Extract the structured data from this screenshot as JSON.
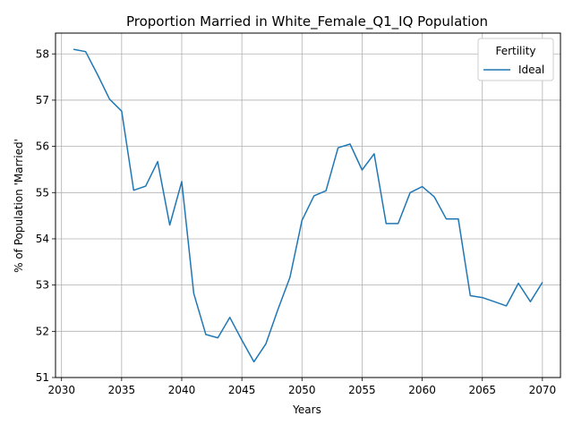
{
  "chart_data": {
    "type": "line",
    "title": "Proportion Married in White_Female_Q1_IQ Population",
    "xlabel": "Years",
    "ylabel": "% of Population 'Married'",
    "xlim": [
      2029.5,
      2071.5
    ],
    "ylim": [
      51,
      58.45
    ],
    "x_ticks": [
      2030,
      2035,
      2040,
      2045,
      2050,
      2055,
      2060,
      2065,
      2070
    ],
    "y_ticks": [
      51,
      52,
      53,
      54,
      55,
      56,
      57,
      58
    ],
    "grid": true,
    "legend": {
      "title": "Fertility",
      "position": "top-right"
    },
    "series": [
      {
        "name": "Ideal",
        "color": "#1f77b4",
        "x": [
          2031,
          2032,
          2033,
          2034,
          2035,
          2036,
          2037,
          2038,
          2039,
          2040,
          2041,
          2042,
          2043,
          2044,
          2045,
          2046,
          2047,
          2048,
          2049,
          2050,
          2051,
          2052,
          2053,
          2054,
          2055,
          2056,
          2057,
          2058,
          2059,
          2060,
          2061,
          2062,
          2063,
          2064,
          2065,
          2066,
          2067,
          2068,
          2069,
          2070
        ],
        "values": [
          58.1,
          58.05,
          57.55,
          57.02,
          56.76,
          55.05,
          55.14,
          55.67,
          54.3,
          55.24,
          52.82,
          51.93,
          51.86,
          52.3,
          51.81,
          51.34,
          51.73,
          52.47,
          53.17,
          54.4,
          54.93,
          55.04,
          55.97,
          56.05,
          55.49,
          55.84,
          54.33,
          54.33,
          55.0,
          55.13,
          54.91,
          54.43,
          54.43,
          52.77,
          52.73,
          52.64,
          52.55,
          53.04,
          52.64,
          53.06
        ]
      }
    ]
  }
}
